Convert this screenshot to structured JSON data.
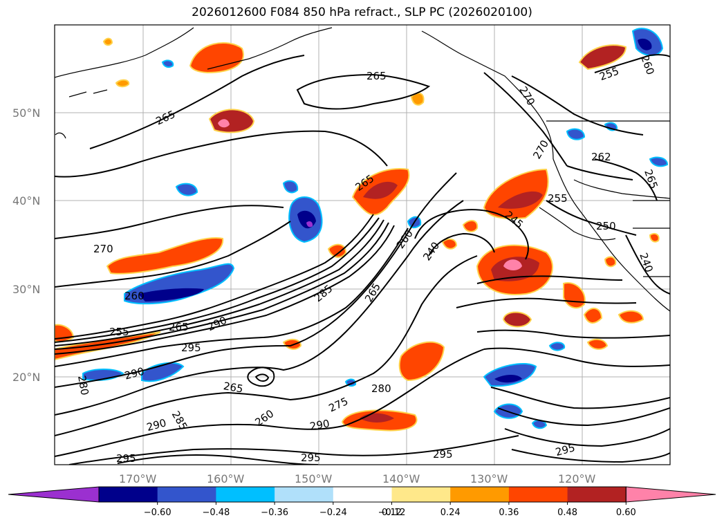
{
  "title": "2026012600 F084 850 hPa refract., SLP PC (2026020100)",
  "map": {
    "lat_labels": [
      "50°N",
      "40°N",
      "30°N",
      "20°N"
    ],
    "lon_labels": [
      "170°W",
      "160°W",
      "150°W",
      "140°W",
      "130°W",
      "120°W"
    ],
    "contour_labels": [
      "265",
      "265",
      "270",
      "260",
      "255",
      "265",
      "290",
      "295",
      "290",
      "290",
      "265",
      "260",
      "285",
      "265",
      "290",
      "295",
      "275",
      "280",
      "295",
      "265",
      "285",
      "260",
      "240",
      "245",
      "255",
      "250",
      "240",
      "262",
      "265",
      "270",
      "255",
      "260",
      "295",
      "280",
      "270",
      "295"
    ]
  },
  "colorbar": {
    "ticks": [
      "−0.60",
      "−0.48",
      "−0.36",
      "−0.24",
      "−0.12",
      "0.12",
      "0.24",
      "0.36",
      "0.48",
      "0.60"
    ],
    "colors": [
      "#9b30d0",
      "#00008b",
      "#3355cc",
      "#00bfff",
      "#b0e0fa",
      "#ffffff",
      "#ffe88a",
      "#ff9a00",
      "#ff4500",
      "#b22222",
      "#ff82a9"
    ]
  }
}
